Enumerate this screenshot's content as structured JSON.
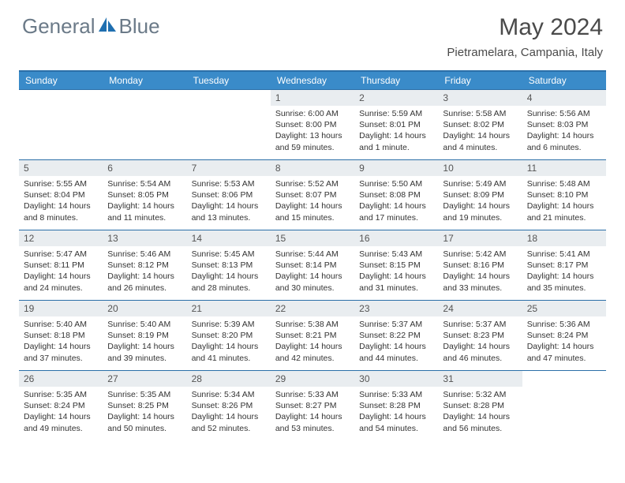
{
  "logo": {
    "text1": "General",
    "text2": "Blue",
    "color_gray": "#6b7a88",
    "color_blue": "#1f6fb0"
  },
  "title": "May 2024",
  "location": "Pietramelara, Campania, Italy",
  "colors": {
    "header_bg": "#3a8bc9",
    "header_text": "#ffffff",
    "rule": "#2b6fa8",
    "daynum_bg": "#e9edf0",
    "text": "#333333"
  },
  "day_names": [
    "Sunday",
    "Monday",
    "Tuesday",
    "Wednesday",
    "Thursday",
    "Friday",
    "Saturday"
  ],
  "weeks": [
    [
      {
        "n": "",
        "sr": "",
        "ss": "",
        "dl": ""
      },
      {
        "n": "",
        "sr": "",
        "ss": "",
        "dl": ""
      },
      {
        "n": "",
        "sr": "",
        "ss": "",
        "dl": ""
      },
      {
        "n": "1",
        "sr": "Sunrise: 6:00 AM",
        "ss": "Sunset: 8:00 PM",
        "dl": "Daylight: 13 hours and 59 minutes."
      },
      {
        "n": "2",
        "sr": "Sunrise: 5:59 AM",
        "ss": "Sunset: 8:01 PM",
        "dl": "Daylight: 14 hours and 1 minute."
      },
      {
        "n": "3",
        "sr": "Sunrise: 5:58 AM",
        "ss": "Sunset: 8:02 PM",
        "dl": "Daylight: 14 hours and 4 minutes."
      },
      {
        "n": "4",
        "sr": "Sunrise: 5:56 AM",
        "ss": "Sunset: 8:03 PM",
        "dl": "Daylight: 14 hours and 6 minutes."
      }
    ],
    [
      {
        "n": "5",
        "sr": "Sunrise: 5:55 AM",
        "ss": "Sunset: 8:04 PM",
        "dl": "Daylight: 14 hours and 8 minutes."
      },
      {
        "n": "6",
        "sr": "Sunrise: 5:54 AM",
        "ss": "Sunset: 8:05 PM",
        "dl": "Daylight: 14 hours and 11 minutes."
      },
      {
        "n": "7",
        "sr": "Sunrise: 5:53 AM",
        "ss": "Sunset: 8:06 PM",
        "dl": "Daylight: 14 hours and 13 minutes."
      },
      {
        "n": "8",
        "sr": "Sunrise: 5:52 AM",
        "ss": "Sunset: 8:07 PM",
        "dl": "Daylight: 14 hours and 15 minutes."
      },
      {
        "n": "9",
        "sr": "Sunrise: 5:50 AM",
        "ss": "Sunset: 8:08 PM",
        "dl": "Daylight: 14 hours and 17 minutes."
      },
      {
        "n": "10",
        "sr": "Sunrise: 5:49 AM",
        "ss": "Sunset: 8:09 PM",
        "dl": "Daylight: 14 hours and 19 minutes."
      },
      {
        "n": "11",
        "sr": "Sunrise: 5:48 AM",
        "ss": "Sunset: 8:10 PM",
        "dl": "Daylight: 14 hours and 21 minutes."
      }
    ],
    [
      {
        "n": "12",
        "sr": "Sunrise: 5:47 AM",
        "ss": "Sunset: 8:11 PM",
        "dl": "Daylight: 14 hours and 24 minutes."
      },
      {
        "n": "13",
        "sr": "Sunrise: 5:46 AM",
        "ss": "Sunset: 8:12 PM",
        "dl": "Daylight: 14 hours and 26 minutes."
      },
      {
        "n": "14",
        "sr": "Sunrise: 5:45 AM",
        "ss": "Sunset: 8:13 PM",
        "dl": "Daylight: 14 hours and 28 minutes."
      },
      {
        "n": "15",
        "sr": "Sunrise: 5:44 AM",
        "ss": "Sunset: 8:14 PM",
        "dl": "Daylight: 14 hours and 30 minutes."
      },
      {
        "n": "16",
        "sr": "Sunrise: 5:43 AM",
        "ss": "Sunset: 8:15 PM",
        "dl": "Daylight: 14 hours and 31 minutes."
      },
      {
        "n": "17",
        "sr": "Sunrise: 5:42 AM",
        "ss": "Sunset: 8:16 PM",
        "dl": "Daylight: 14 hours and 33 minutes."
      },
      {
        "n": "18",
        "sr": "Sunrise: 5:41 AM",
        "ss": "Sunset: 8:17 PM",
        "dl": "Daylight: 14 hours and 35 minutes."
      }
    ],
    [
      {
        "n": "19",
        "sr": "Sunrise: 5:40 AM",
        "ss": "Sunset: 8:18 PM",
        "dl": "Daylight: 14 hours and 37 minutes."
      },
      {
        "n": "20",
        "sr": "Sunrise: 5:40 AM",
        "ss": "Sunset: 8:19 PM",
        "dl": "Daylight: 14 hours and 39 minutes."
      },
      {
        "n": "21",
        "sr": "Sunrise: 5:39 AM",
        "ss": "Sunset: 8:20 PM",
        "dl": "Daylight: 14 hours and 41 minutes."
      },
      {
        "n": "22",
        "sr": "Sunrise: 5:38 AM",
        "ss": "Sunset: 8:21 PM",
        "dl": "Daylight: 14 hours and 42 minutes."
      },
      {
        "n": "23",
        "sr": "Sunrise: 5:37 AM",
        "ss": "Sunset: 8:22 PM",
        "dl": "Daylight: 14 hours and 44 minutes."
      },
      {
        "n": "24",
        "sr": "Sunrise: 5:37 AM",
        "ss": "Sunset: 8:23 PM",
        "dl": "Daylight: 14 hours and 46 minutes."
      },
      {
        "n": "25",
        "sr": "Sunrise: 5:36 AM",
        "ss": "Sunset: 8:24 PM",
        "dl": "Daylight: 14 hours and 47 minutes."
      }
    ],
    [
      {
        "n": "26",
        "sr": "Sunrise: 5:35 AM",
        "ss": "Sunset: 8:24 PM",
        "dl": "Daylight: 14 hours and 49 minutes."
      },
      {
        "n": "27",
        "sr": "Sunrise: 5:35 AM",
        "ss": "Sunset: 8:25 PM",
        "dl": "Daylight: 14 hours and 50 minutes."
      },
      {
        "n": "28",
        "sr": "Sunrise: 5:34 AM",
        "ss": "Sunset: 8:26 PM",
        "dl": "Daylight: 14 hours and 52 minutes."
      },
      {
        "n": "29",
        "sr": "Sunrise: 5:33 AM",
        "ss": "Sunset: 8:27 PM",
        "dl": "Daylight: 14 hours and 53 minutes."
      },
      {
        "n": "30",
        "sr": "Sunrise: 5:33 AM",
        "ss": "Sunset: 8:28 PM",
        "dl": "Daylight: 14 hours and 54 minutes."
      },
      {
        "n": "31",
        "sr": "Sunrise: 5:32 AM",
        "ss": "Sunset: 8:28 PM",
        "dl": "Daylight: 14 hours and 56 minutes."
      },
      {
        "n": "",
        "sr": "",
        "ss": "",
        "dl": ""
      }
    ]
  ]
}
